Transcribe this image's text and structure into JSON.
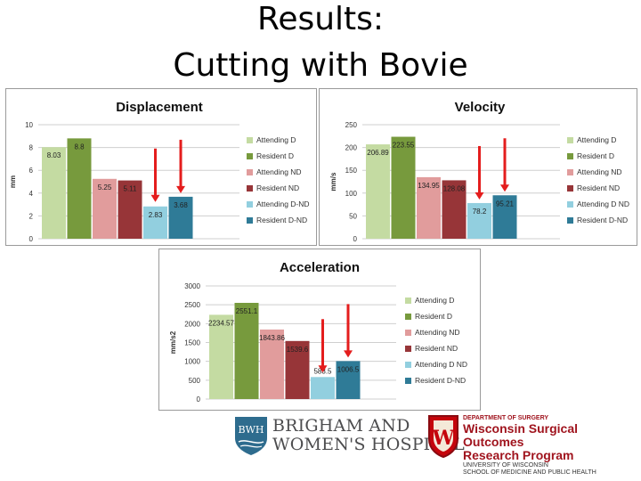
{
  "slide": {
    "title_line1": "Results:",
    "title_line2": "Cutting with Bovie"
  },
  "colors": {
    "Attending D": "#c4dba2",
    "Resident D": "#779a3d",
    "Attending ND": "#e19c9c",
    "Resident ND": "#973538",
    "Attending D-ND": "#92cfdf",
    "Resident D-ND": "#2f7b97",
    "arrow": "#e41d1d"
  },
  "chart_data": [
    {
      "type": "bar",
      "title": "Displacement",
      "ylabel": "mm",
      "ylim": [
        0,
        10
      ],
      "yticks": [
        "0",
        "2",
        "4",
        "6",
        "8",
        "10"
      ],
      "grid": true,
      "legend": "right",
      "categories": [
        "Attending D",
        "Resident D",
        "Attending ND",
        "Resident ND",
        "Attending D-ND",
        "Resident D-ND"
      ],
      "values": [
        8.03,
        8.8,
        5.25,
        5.11,
        2.83,
        3.68
      ],
      "data_labels": [
        "8.03",
        "8.8",
        "5.25",
        "5.11",
        "2.83",
        "3.68"
      ],
      "arrows_on": [
        "Attending D-ND",
        "Resident D-ND"
      ]
    },
    {
      "type": "bar",
      "title": "Velocity",
      "ylabel": "mm/s",
      "ylim": [
        0,
        250
      ],
      "yticks": [
        "0",
        "50",
        "100",
        "150",
        "200",
        "250"
      ],
      "grid": true,
      "legend": "right",
      "categories": [
        "Attending D",
        "Resident D",
        "Attending ND",
        "Resident ND",
        "Attending D ND",
        "Resident D-ND"
      ],
      "values": [
        206.89,
        223.55,
        134.95,
        128.08,
        78.2,
        95.21
      ],
      "data_labels": [
        "206.89",
        "223.55",
        "134.95",
        "128.08",
        "78.2",
        "95.21"
      ],
      "arrows_on": [
        "Attending D ND",
        "Resident D-ND"
      ]
    },
    {
      "type": "bar",
      "title": "Acceleration",
      "ylabel": "mm/s2",
      "ylim": [
        0,
        3000
      ],
      "yticks": [
        "0",
        "500",
        "1000",
        "1500",
        "2000",
        "2500",
        "3000"
      ],
      "grid": true,
      "legend": "right",
      "categories": [
        "Attending D",
        "Resident D",
        "Attending ND",
        "Resident ND",
        "Attending D ND",
        "Resident D-ND"
      ],
      "values": [
        2234.57,
        2551.1,
        1843.86,
        1539.6,
        583.5,
        1006.5
      ],
      "data_labels": [
        "2234.57",
        "2551.1",
        "1843.86",
        "1539.6",
        "583.5",
        "1006.5"
      ],
      "arrows_on": [
        "Attending D ND",
        "Resident D-ND"
      ]
    }
  ],
  "logos": {
    "bwh_mark": "BWH",
    "bwh_line1": "BRIGHAM AND",
    "bwh_line2": "WOMEN'S HOSPITAL",
    "uw_dept": "DEPARTMENT OF SURGERY",
    "uw_name_line1": "Wisconsin Surgical Outcomes",
    "uw_name_line2": "Research Program",
    "uw_sub_line1": "UNIVERSITY OF WISCONSIN",
    "uw_sub_line2": "SCHOOL OF MEDICINE AND PUBLIC HEALTH",
    "uw_mark": "W"
  }
}
